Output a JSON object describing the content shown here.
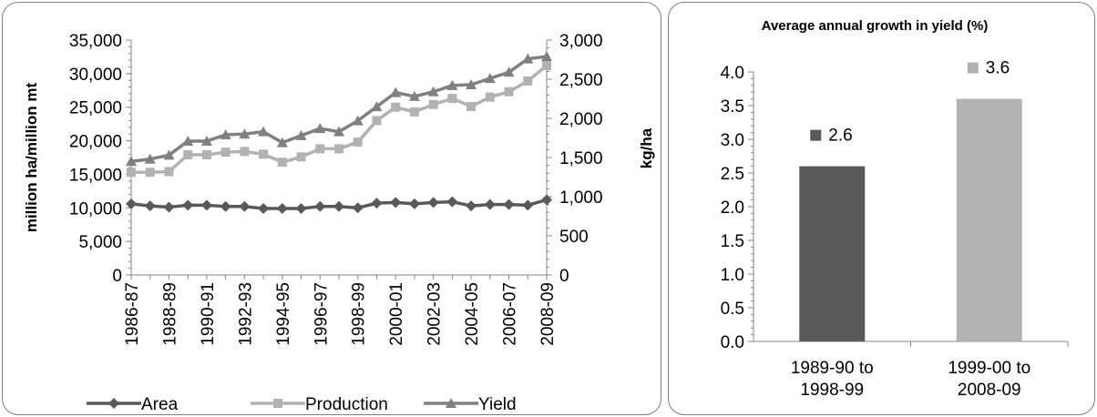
{
  "chart_data": [
    {
      "type": "line",
      "title": "",
      "ylabel_left": "million  ha/million  mt",
      "ylabel_right": "kg/ha",
      "ylim_left": [
        0,
        35000
      ],
      "ylim_right": [
        0,
        3000
      ],
      "yticks_left": [
        "0",
        "5,000",
        "10,000",
        "15,000",
        "20,000",
        "25,000",
        "30,000",
        "35,000"
      ],
      "yticks_right": [
        "0",
        "500",
        "1,000",
        "1,500",
        "2,000",
        "2,500",
        "3,000"
      ],
      "x": [
        "1986-87",
        "1987-88",
        "1988-89",
        "1989-90",
        "1990-91",
        "1991-92",
        "1992-93",
        "1993-94",
        "1994-95",
        "1995-96",
        "1996-97",
        "1997-98",
        "1998-99",
        "1999-00",
        "2000-01",
        "2001-02",
        "2002-03",
        "2003-04",
        "2004-05",
        "2005-06",
        "2006-07",
        "2007-08",
        "2008-09"
      ],
      "x_tick_labels": [
        "1986-87",
        "1988-89",
        "1990-91",
        "1992-93",
        "1994-95",
        "1996-97",
        "1998-99",
        "2000-01",
        "2002-03",
        "2004-05",
        "2006-07",
        "2008-09"
      ],
      "series": [
        {
          "name": "Area",
          "axis": "left",
          "color": "#595959",
          "marker": "diamond",
          "values": [
            10600,
            10300,
            10100,
            10400,
            10400,
            10200,
            10200,
            9900,
            9900,
            9900,
            10200,
            10200,
            10000,
            10700,
            10800,
            10600,
            10800,
            10900,
            10300,
            10500,
            10500,
            10400,
            11200
          ]
        },
        {
          "name": "Production",
          "axis": "left",
          "color": "#b2b2b2",
          "marker": "square",
          "values": [
            15300,
            15300,
            15400,
            17900,
            17900,
            18300,
            18400,
            18000,
            16800,
            17600,
            18800,
            18800,
            19800,
            23000,
            25000,
            24300,
            25400,
            26300,
            25100,
            26500,
            27300,
            28900,
            31200
          ]
        },
        {
          "name": "Yield",
          "axis": "right",
          "color": "#808080",
          "marker": "triangle",
          "values": [
            1450,
            1480,
            1530,
            1710,
            1710,
            1790,
            1800,
            1830,
            1690,
            1780,
            1870,
            1830,
            1970,
            2150,
            2330,
            2280,
            2340,
            2420,
            2430,
            2510,
            2590,
            2760,
            2790
          ]
        }
      ],
      "legend_position": "bottom"
    },
    {
      "type": "bar",
      "title": "Average annual growth in yield (%)",
      "categories": [
        "1989-90 to 1998-99",
        "1999-00 to 2008-09"
      ],
      "category_lines": [
        [
          "1989-90 to",
          "1998-99"
        ],
        [
          "1999-00 to",
          "2008-09"
        ]
      ],
      "values": [
        2.6,
        3.6
      ],
      "data_labels": [
        "2.6",
        "3.6"
      ],
      "colors": [
        "#595959",
        "#b2b2b2"
      ],
      "ylim": [
        0,
        4.0
      ],
      "yticks": [
        "0.0",
        "0.5",
        "1.0",
        "1.5",
        "2.0",
        "2.5",
        "3.0",
        "3.5",
        "4.0"
      ]
    }
  ]
}
